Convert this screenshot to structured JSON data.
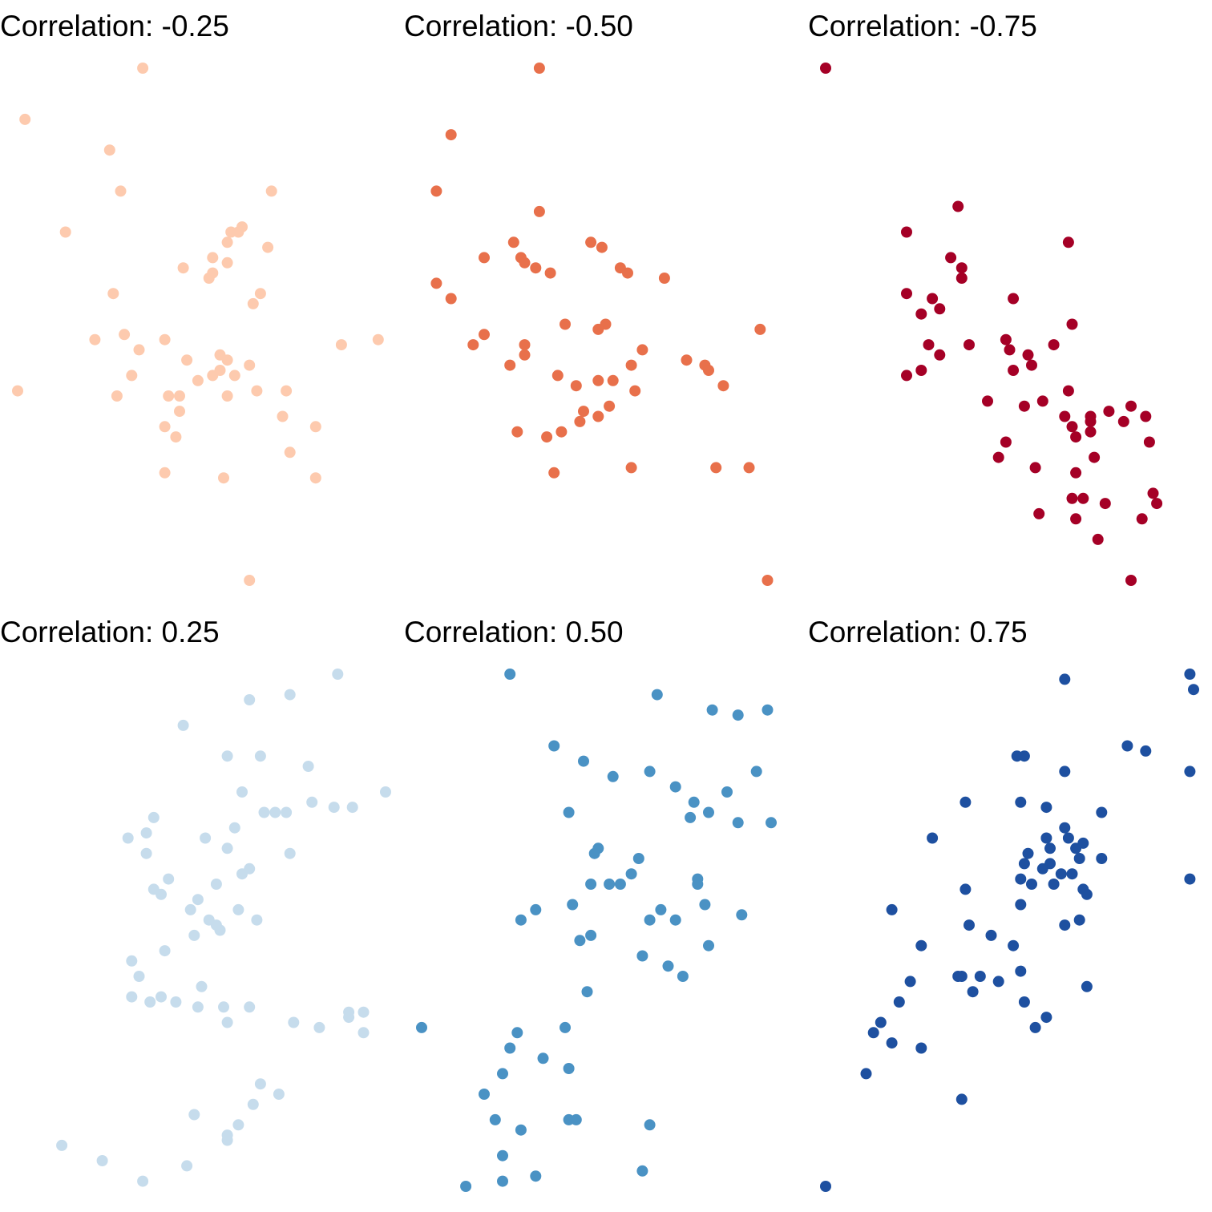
{
  "chart_data": [
    {
      "type": "scatter",
      "title": "Correlation: -0.25",
      "color": "#fdcaae",
      "xlim": [
        0,
        100
      ],
      "ylim": [
        0,
        100
      ],
      "points": [
        [
          34,
          100
        ],
        [
          33,
          45
        ],
        [
          2,
          90
        ],
        [
          25,
          84
        ],
        [
          28,
          76
        ],
        [
          69,
          76
        ],
        [
          13,
          68
        ],
        [
          68,
          65
        ],
        [
          58,
          68
        ],
        [
          60,
          68
        ],
        [
          61,
          69
        ],
        [
          57,
          66
        ],
        [
          53,
          63
        ],
        [
          57,
          62
        ],
        [
          45,
          61
        ],
        [
          53,
          60
        ],
        [
          26,
          56
        ],
        [
          52,
          59
        ],
        [
          66,
          56
        ],
        [
          64,
          54
        ],
        [
          29,
          48
        ],
        [
          21,
          47
        ],
        [
          88,
          46
        ],
        [
          98,
          47
        ],
        [
          40,
          47
        ],
        [
          55,
          44
        ],
        [
          57,
          43
        ],
        [
          63,
          42
        ],
        [
          46,
          43
        ],
        [
          55,
          41
        ],
        [
          59,
          40
        ],
        [
          31,
          40
        ],
        [
          49,
          39
        ],
        [
          53,
          40
        ],
        [
          0,
          37
        ],
        [
          27,
          36
        ],
        [
          41,
          36
        ],
        [
          44,
          36
        ],
        [
          57,
          36
        ],
        [
          65,
          37
        ],
        [
          73,
          37
        ],
        [
          44,
          33
        ],
        [
          72,
          32
        ],
        [
          40,
          30
        ],
        [
          81,
          30
        ],
        [
          43,
          28
        ],
        [
          74,
          25
        ],
        [
          40,
          21
        ],
        [
          56,
          20
        ],
        [
          81,
          20
        ],
        [
          63,
          0
        ]
      ]
    },
    {
      "type": "scatter",
      "title": "Correlation: -0.50",
      "color": "#e8704b",
      "xlim": [
        0,
        100
      ],
      "ylim": [
        0,
        100
      ],
      "points": [
        [
          32,
          100
        ],
        [
          8,
          87
        ],
        [
          4,
          76
        ],
        [
          32,
          72
        ],
        [
          25,
          66
        ],
        [
          17,
          63
        ],
        [
          46,
          66
        ],
        [
          49,
          65
        ],
        [
          27,
          63
        ],
        [
          28,
          62
        ],
        [
          31,
          61
        ],
        [
          54,
          61
        ],
        [
          56,
          60
        ],
        [
          35,
          60
        ],
        [
          66,
          59
        ],
        [
          4,
          58
        ],
        [
          8,
          55
        ],
        [
          39,
          50
        ],
        [
          50,
          50
        ],
        [
          48,
          49
        ],
        [
          92,
          49
        ],
        [
          17,
          48
        ],
        [
          14,
          46
        ],
        [
          28,
          46
        ],
        [
          28,
          44
        ],
        [
          24,
          42
        ],
        [
          57,
          42
        ],
        [
          60,
          45
        ],
        [
          37,
          40
        ],
        [
          72,
          43
        ],
        [
          77,
          42
        ],
        [
          78,
          41
        ],
        [
          42,
          38
        ],
        [
          48,
          39
        ],
        [
          52,
          39
        ],
        [
          58,
          37
        ],
        [
          82,
          38
        ],
        [
          44,
          33
        ],
        [
          48,
          32
        ],
        [
          51,
          34
        ],
        [
          26,
          29
        ],
        [
          34,
          28
        ],
        [
          38,
          29
        ],
        [
          43,
          31
        ],
        [
          36,
          21
        ],
        [
          57,
          22
        ],
        [
          80,
          22
        ],
        [
          89,
          22
        ],
        [
          94,
          0
        ]
      ]
    },
    {
      "type": "scatter",
      "title": "Correlation: -0.75",
      "color": "#a50026",
      "xlim": [
        0,
        100
      ],
      "ylim": [
        0,
        100
      ],
      "points": [
        [
          0,
          100
        ],
        [
          36,
          73
        ],
        [
          66,
          66
        ],
        [
          22,
          68
        ],
        [
          34,
          63
        ],
        [
          37,
          59
        ],
        [
          37,
          61
        ],
        [
          22,
          56
        ],
        [
          26,
          52
        ],
        [
          29,
          55
        ],
        [
          31,
          53
        ],
        [
          51,
          55
        ],
        [
          67,
          50
        ],
        [
          62,
          46
        ],
        [
          28,
          46
        ],
        [
          39,
          46
        ],
        [
          49,
          47
        ],
        [
          31,
          44
        ],
        [
          26,
          41
        ],
        [
          22,
          40
        ],
        [
          50,
          45
        ],
        [
          56,
          42
        ],
        [
          55,
          44
        ],
        [
          51,
          41
        ],
        [
          59,
          35
        ],
        [
          54,
          34
        ],
        [
          66,
          37
        ],
        [
          44,
          35
        ],
        [
          77,
          33
        ],
        [
          83,
          34
        ],
        [
          81,
          31
        ],
        [
          87,
          32
        ],
        [
          72,
          32
        ],
        [
          72,
          29
        ],
        [
          65,
          32
        ],
        [
          67,
          30
        ],
        [
          72,
          31
        ],
        [
          68,
          28
        ],
        [
          88,
          27
        ],
        [
          49,
          27
        ],
        [
          47,
          24
        ],
        [
          73,
          24
        ],
        [
          57,
          22
        ],
        [
          68,
          21
        ],
        [
          89,
          17
        ],
        [
          67,
          16
        ],
        [
          76,
          15
        ],
        [
          70,
          16
        ],
        [
          90,
          15
        ],
        [
          58,
          13
        ],
        [
          68,
          12
        ],
        [
          86,
          12
        ],
        [
          74,
          8
        ],
        [
          83,
          0
        ]
      ]
    },
    {
      "type": "scatter",
      "title": "Correlation: 0.25",
      "color": "#c6dcec",
      "xlim": [
        0,
        100
      ],
      "ylim": [
        0,
        100
      ],
      "points": [
        [
          87,
          100
        ],
        [
          74,
          96
        ],
        [
          63,
          95
        ],
        [
          45,
          90
        ],
        [
          57,
          84
        ],
        [
          66,
          84
        ],
        [
          79,
          82
        ],
        [
          61,
          77
        ],
        [
          67,
          73
        ],
        [
          100,
          77
        ],
        [
          37,
          72
        ],
        [
          35,
          69
        ],
        [
          70,
          73
        ],
        [
          80,
          75
        ],
        [
          86,
          74
        ],
        [
          91,
          74
        ],
        [
          73,
          73
        ],
        [
          59,
          70
        ],
        [
          51,
          68
        ],
        [
          30,
          68
        ],
        [
          35,
          65
        ],
        [
          57,
          66
        ],
        [
          74,
          65
        ],
        [
          63,
          62
        ],
        [
          61,
          61
        ],
        [
          54,
          59
        ],
        [
          37,
          58
        ],
        [
          41,
          60
        ],
        [
          39,
          57
        ],
        [
          49,
          56
        ],
        [
          47,
          54
        ],
        [
          60,
          54
        ],
        [
          65,
          52
        ],
        [
          52,
          52
        ],
        [
          54,
          51
        ],
        [
          55,
          50
        ],
        [
          48,
          49
        ],
        [
          40,
          46
        ],
        [
          31,
          44
        ],
        [
          33,
          41
        ],
        [
          31,
          37
        ],
        [
          39,
          37
        ],
        [
          50,
          39
        ],
        [
          36,
          36
        ],
        [
          43,
          36
        ],
        [
          49,
          35
        ],
        [
          56,
          35
        ],
        [
          63,
          35
        ],
        [
          57,
          32
        ],
        [
          75,
          32
        ],
        [
          82,
          31
        ],
        [
          90,
          34
        ],
        [
          90,
          33
        ],
        [
          94,
          30
        ],
        [
          94,
          34
        ],
        [
          66,
          20
        ],
        [
          71,
          18
        ],
        [
          64,
          16
        ],
        [
          48,
          14
        ],
        [
          60,
          12
        ],
        [
          57,
          9
        ],
        [
          46,
          4
        ],
        [
          57,
          10
        ],
        [
          23,
          5
        ],
        [
          12,
          8
        ],
        [
          34,
          1
        ]
      ]
    },
    {
      "type": "scatter",
      "title": "Correlation: 0.50",
      "color": "#4a92c4",
      "xlim": [
        0,
        100
      ],
      "ylim": [
        0,
        100
      ],
      "points": [
        [
          24,
          100
        ],
        [
          64,
          96
        ],
        [
          79,
          93
        ],
        [
          86,
          92
        ],
        [
          94,
          93
        ],
        [
          36,
          86
        ],
        [
          62,
          81
        ],
        [
          91,
          81
        ],
        [
          44,
          83
        ],
        [
          52,
          80
        ],
        [
          69,
          78
        ],
        [
          40,
          73
        ],
        [
          83,
          77
        ],
        [
          74,
          75
        ],
        [
          78,
          73
        ],
        [
          86,
          71
        ],
        [
          95,
          71
        ],
        [
          48,
          66
        ],
        [
          59,
          64
        ],
        [
          47,
          65
        ],
        [
          73,
          72
        ],
        [
          57,
          61
        ],
        [
          75,
          60
        ],
        [
          51,
          59
        ],
        [
          46,
          59
        ],
        [
          54,
          59
        ],
        [
          77,
          55
        ],
        [
          65,
          54
        ],
        [
          69,
          52
        ],
        [
          75,
          59
        ],
        [
          62,
          52
        ],
        [
          31,
          54
        ],
        [
          27,
          52
        ],
        [
          41,
          55
        ],
        [
          46,
          49
        ],
        [
          43,
          48
        ],
        [
          87,
          53
        ],
        [
          78,
          47
        ],
        [
          67,
          43
        ],
        [
          60,
          45
        ],
        [
          71,
          41
        ],
        [
          45,
          38
        ],
        [
          39,
          31
        ],
        [
          26,
          30
        ],
        [
          24,
          27
        ],
        [
          0,
          31
        ],
        [
          33,
          25
        ],
        [
          22,
          22
        ],
        [
          40,
          23
        ],
        [
          17,
          18
        ],
        [
          20,
          13
        ],
        [
          27,
          11
        ],
        [
          40,
          13
        ],
        [
          42,
          13
        ],
        [
          62,
          12
        ],
        [
          22,
          6
        ],
        [
          12,
          0
        ],
        [
          31,
          2
        ],
        [
          22,
          1
        ],
        [
          60,
          3
        ]
      ]
    },
    {
      "type": "scatter",
      "title": "Correlation: 0.75",
      "color": "#1e50a0",
      "xlim": [
        0,
        100
      ],
      "ylim": [
        0,
        100
      ],
      "points": [
        [
          65,
          99
        ],
        [
          99,
          100
        ],
        [
          100,
          97
        ],
        [
          52,
          84
        ],
        [
          54,
          84
        ],
        [
          82,
          86
        ],
        [
          87,
          85
        ],
        [
          65,
          81
        ],
        [
          99,
          81
        ],
        [
          38,
          75
        ],
        [
          53,
          75
        ],
        [
          60,
          74
        ],
        [
          29,
          68
        ],
        [
          65,
          70
        ],
        [
          75,
          73
        ],
        [
          60,
          68
        ],
        [
          66,
          68
        ],
        [
          68,
          66
        ],
        [
          69,
          64
        ],
        [
          70,
          67
        ],
        [
          61,
          63
        ],
        [
          54,
          63
        ],
        [
          59,
          62
        ],
        [
          61,
          66
        ],
        [
          55,
          65
        ],
        [
          64,
          61
        ],
        [
          75,
          64
        ],
        [
          67,
          61
        ],
        [
          53,
          60
        ],
        [
          56,
          59
        ],
        [
          62,
          59
        ],
        [
          70,
          58
        ],
        [
          99,
          60
        ],
        [
          38,
          58
        ],
        [
          53,
          55
        ],
        [
          69,
          52
        ],
        [
          71,
          57
        ],
        [
          65,
          51
        ],
        [
          39,
          51
        ],
        [
          45,
          49
        ],
        [
          51,
          47
        ],
        [
          26,
          47
        ],
        [
          18,
          54
        ],
        [
          37,
          41
        ],
        [
          47,
          40
        ],
        [
          53,
          42
        ],
        [
          42,
          41
        ],
        [
          36,
          41
        ],
        [
          23,
          40
        ],
        [
          20,
          36
        ],
        [
          15,
          32
        ],
        [
          13,
          30
        ],
        [
          26,
          27
        ],
        [
          18,
          28
        ],
        [
          40,
          38
        ],
        [
          54,
          36
        ],
        [
          57,
          31
        ],
        [
          60,
          33
        ],
        [
          71,
          39
        ],
        [
          37,
          17
        ],
        [
          11,
          22
        ],
        [
          0,
          0
        ]
      ]
    }
  ]
}
